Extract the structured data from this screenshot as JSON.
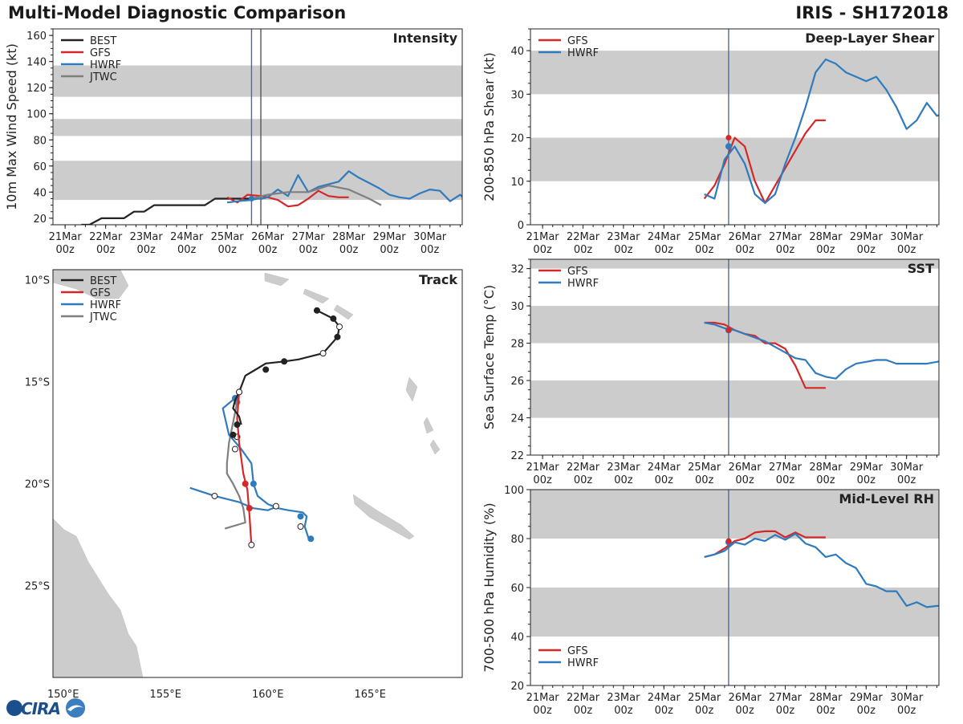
{
  "header": {
    "title_left": "Multi-Model Diagnostic Comparison",
    "title_right": "IRIS - SH172018"
  },
  "logo": {
    "text": "CIRA"
  },
  "colors": {
    "BEST": "#222222",
    "GFS": "#d62728",
    "HWRF": "#2f7bbd",
    "JTWC": "#7f7f7f",
    "band": "#cccccc",
    "land": "#cccccc",
    "init_line": "#4a6e9c"
  },
  "time_axis": {
    "ticks": [
      [
        "21Mar",
        "00z"
      ],
      [
        "22Mar",
        "00z"
      ],
      [
        "23Mar",
        "00z"
      ],
      [
        "24Mar",
        "00z"
      ],
      [
        "25Mar",
        "00z"
      ],
      [
        "26Mar",
        "00z"
      ],
      [
        "27Mar",
        "00z"
      ],
      [
        "28Mar",
        "00z"
      ],
      [
        "29Mar",
        "00z"
      ],
      [
        "30Mar",
        "00z"
      ]
    ],
    "tick_days": [
      0,
      1,
      2,
      3,
      4,
      5,
      6,
      7,
      8,
      9
    ],
    "range_days": [
      -0.3,
      9.8
    ],
    "init_day": 4.6,
    "init_day_b": 4.83
  },
  "chart_data": [
    {
      "id": "intensity",
      "type": "line",
      "title": "Intensity",
      "ylabel": "10m Max Wind Speed (kt)",
      "ylim": [
        15,
        165
      ],
      "yticks": [
        20,
        40,
        60,
        80,
        100,
        120,
        140,
        160
      ],
      "bands": [
        [
          34,
          64
        ],
        [
          83,
          96
        ],
        [
          113,
          137
        ]
      ],
      "legend": [
        "BEST",
        "GFS",
        "HWRF",
        "JTWC"
      ],
      "series": [
        {
          "name": "BEST",
          "x": [
            0.4,
            0.6,
            0.9,
            1.2,
            1.45,
            1.7,
            1.95,
            2.2,
            2.45,
            2.7,
            2.95,
            3.2,
            3.45,
            3.7,
            3.95,
            4.2,
            4.45,
            4.6
          ],
          "y": [
            15,
            15,
            20,
            20,
            20,
            25,
            25,
            30,
            30,
            30,
            30,
            30,
            30,
            35,
            35,
            35,
            35,
            35
          ]
        },
        {
          "name": "GFS",
          "x": [
            4.0,
            4.25,
            4.5,
            4.83,
            5.0,
            5.25,
            5.5,
            5.75,
            6.0,
            6.25,
            6.5,
            6.75,
            7.0
          ],
          "y": [
            36,
            32,
            38,
            37,
            36,
            34,
            29,
            30,
            35,
            41,
            37,
            36,
            36
          ]
        },
        {
          "name": "HWRF",
          "x": [
            4.0,
            4.25,
            4.6,
            4.75,
            4.85,
            5.0,
            5.25,
            5.5,
            5.75,
            6.0,
            6.25,
            6.5,
            6.75,
            7.0,
            7.25,
            7.5,
            7.75,
            8.0,
            8.25,
            8.5,
            8.75,
            9.0,
            9.25,
            9.5,
            9.75,
            10.0
          ],
          "y": [
            32,
            33,
            34,
            35,
            35,
            36,
            42,
            37,
            53,
            40,
            44,
            46,
            48,
            56,
            51,
            47,
            43,
            38,
            36,
            35,
            39,
            42,
            41,
            33,
            38,
            30
          ]
        },
        {
          "name": "JTWC",
          "x": [
            4.6,
            5.0,
            5.5,
            6.0,
            6.5,
            7.0,
            7.5,
            7.8
          ],
          "y": [
            35,
            38,
            40,
            40,
            45,
            42,
            35,
            30
          ]
        }
      ]
    },
    {
      "id": "shear",
      "type": "line",
      "title": "Deep-Layer Shear",
      "ylabel": "200-850 hPa Shear (kt)",
      "ylim": [
        0,
        45
      ],
      "yticks": [
        0,
        10,
        20,
        30,
        40
      ],
      "bands": [
        [
          10,
          20
        ],
        [
          30,
          40
        ]
      ],
      "legend": [
        "GFS",
        "HWRF"
      ],
      "series": [
        {
          "name": "GFS",
          "x": [
            4.0,
            4.25,
            4.5,
            4.75,
            5.0,
            5.25,
            5.5,
            5.75,
            6.0,
            6.25,
            6.5,
            6.75,
            7.0
          ],
          "y": [
            6,
            9,
            14,
            20,
            18,
            10,
            5,
            9,
            13,
            17,
            21,
            24,
            24
          ]
        },
        {
          "name": "HWRF",
          "x": [
            4.0,
            4.25,
            4.5,
            4.75,
            5.0,
            5.25,
            5.5,
            5.75,
            6.0,
            6.25,
            6.5,
            6.75,
            7.0,
            7.25,
            7.5,
            7.75,
            8.0,
            8.25,
            8.5,
            8.75,
            9.0,
            9.25,
            9.5,
            9.75,
            10.0
          ],
          "y": [
            7,
            6,
            15,
            18,
            14,
            7,
            5,
            7,
            14,
            20,
            27,
            35,
            38,
            37,
            35,
            34,
            33,
            34,
            31,
            27,
            22,
            24,
            28,
            25,
            26
          ]
        }
      ]
    },
    {
      "id": "sst",
      "type": "line",
      "title": "SST",
      "ylabel": "Sea Surface Temp (°C)",
      "ylim": [
        22,
        32.5
      ],
      "yticks": [
        22,
        24,
        26,
        28,
        30,
        32
      ],
      "bands": [
        [
          24,
          26
        ],
        [
          28,
          30
        ],
        [
          32,
          32.5
        ]
      ],
      "legend": [
        "GFS",
        "HWRF"
      ],
      "series": [
        {
          "name": "GFS",
          "x": [
            4.0,
            4.25,
            4.5,
            4.75,
            5.0,
            5.25,
            5.5,
            5.75,
            6.0,
            6.25,
            6.5,
            6.75,
            7.0
          ],
          "y": [
            29.1,
            29.1,
            29.0,
            28.7,
            28.5,
            28.4,
            28.0,
            28.0,
            27.7,
            26.8,
            25.6,
            25.6,
            25.6
          ]
        },
        {
          "name": "HWRF",
          "x": [
            4.0,
            4.25,
            4.5,
            4.75,
            5.0,
            5.25,
            5.5,
            5.75,
            6.0,
            6.25,
            6.5,
            6.75,
            7.0,
            7.25,
            7.5,
            7.75,
            8.0,
            8.25,
            8.5,
            8.75,
            9.0,
            9.25,
            9.5,
            9.75,
            10.0
          ],
          "y": [
            29.1,
            29.0,
            28.8,
            28.7,
            28.5,
            28.3,
            28.1,
            27.8,
            27.5,
            27.2,
            27.1,
            26.4,
            26.2,
            26.1,
            26.6,
            26.9,
            27.0,
            27.1,
            27.1,
            26.9,
            26.9,
            26.9,
            26.9,
            27.0,
            27.1
          ]
        }
      ]
    },
    {
      "id": "rh",
      "type": "line",
      "title": "Mid-Level RH",
      "ylabel": "700-500 hPa Humidity (%)",
      "ylim": [
        20,
        100
      ],
      "yticks": [
        20,
        40,
        60,
        80,
        100
      ],
      "bands": [
        [
          40,
          60
        ],
        [
          80,
          100
        ]
      ],
      "legend": [
        "GFS",
        "HWRF"
      ],
      "series": [
        {
          "name": "GFS",
          "x": [
            4.0,
            4.25,
            4.5,
            4.75,
            5.0,
            5.25,
            5.5,
            5.75,
            6.0,
            6.25,
            6.5,
            6.75,
            7.0
          ],
          "y": [
            72.5,
            73.5,
            76,
            79,
            80,
            82.5,
            83,
            83,
            80.5,
            82.5,
            80.5,
            80.5,
            80.5
          ]
        },
        {
          "name": "HWRF",
          "x": [
            4.0,
            4.25,
            4.5,
            4.75,
            5.0,
            5.25,
            5.5,
            5.75,
            6.0,
            6.25,
            6.5,
            6.75,
            7.0,
            7.25,
            7.5,
            7.75,
            8.0,
            8.25,
            8.5,
            8.75,
            9.0,
            9.25,
            9.5,
            9.75,
            10.0
          ],
          "y": [
            72.5,
            73.5,
            75,
            78.5,
            77.5,
            80,
            79,
            81.5,
            79.5,
            82,
            78,
            76.5,
            72.5,
            73.5,
            70,
            68,
            61.5,
            60.5,
            58.5,
            58.5,
            52.5,
            54,
            52,
            52.5,
            52.5
          ]
        }
      ]
    },
    {
      "id": "track",
      "type": "scatter",
      "title": "Track",
      "xlim": [
        149.5,
        169.5
      ],
      "ylim": [
        -29.5,
        -9.5
      ],
      "xticks": [
        150,
        155,
        160,
        165
      ],
      "xtick_labels": [
        "150°E",
        "155°E",
        "160°E",
        "165°E"
      ],
      "yticks": [
        -10,
        -15,
        -20,
        -25
      ],
      "ytick_labels": [
        "10°S",
        "15°S",
        "20°S",
        "25°S"
      ],
      "legend": [
        "BEST",
        "GFS",
        "HWRF",
        "JTWC"
      ],
      "series": [
        {
          "name": "BEST",
          "lon": [
            162.4,
            163.2,
            163.5,
            163.4,
            162.7,
            161.5,
            160.8,
            159.9,
            159.4,
            158.9,
            158.6,
            158.4,
            158.3,
            158.6,
            158.7
          ],
          "lat": [
            -11.5,
            -11.9,
            -12.3,
            -12.8,
            -13.6,
            -13.9,
            -14.0,
            -14.1,
            -14.4,
            -14.7,
            -15.5,
            -15.9,
            -16.3,
            -16.7,
            -17.1
          ],
          "markers": [
            [
              162.4,
              -11.5,
              "f"
            ],
            [
              163.2,
              -11.9,
              "f"
            ],
            [
              163.5,
              -12.3,
              "o"
            ],
            [
              163.4,
              -12.8,
              "f"
            ],
            [
              162.7,
              -13.6,
              "o"
            ],
            [
              160.8,
              -14.0,
              "f"
            ],
            [
              159.9,
              -14.4,
              "f"
            ],
            [
              158.6,
              -15.5,
              "o"
            ],
            [
              158.3,
              -17.6,
              "f"
            ],
            [
              158.5,
              -17.1,
              "f"
            ]
          ]
        },
        {
          "name": "GFS",
          "lon": [
            158.6,
            158.5,
            158.6,
            158.8,
            159.0,
            159.1,
            159.2
          ],
          "lat": [
            -15.5,
            -16.8,
            -18.0,
            -19.5,
            -20.3,
            -21.5,
            -23.0
          ],
          "markers": [
            [
              158.6,
              -15.5,
              "f"
            ],
            [
              158.9,
              -20.0,
              "f"
            ],
            [
              159.1,
              -21.2,
              "f"
            ],
            [
              159.2,
              -23.0,
              "o"
            ]
          ]
        },
        {
          "name": "HWRF",
          "lon": [
            158.4,
            157.8,
            158.1,
            158.7,
            159.2,
            159.3,
            159.5,
            160.0,
            160.5,
            161.0,
            161.7,
            161.9,
            161.8,
            162.0
          ],
          "lat": [
            -15.8,
            -16.3,
            -17.6,
            -18.3,
            -19.0,
            -20.0,
            -20.6,
            -21.0,
            -21.2,
            -21.3,
            -21.4,
            -21.6,
            -22.1,
            -22.7
          ],
          "markers": [
            [
              158.4,
              -15.8,
              "f"
            ],
            [
              158.5,
              -17.7,
              "o"
            ],
            [
              158.4,
              -18.3,
              "o"
            ],
            [
              159.3,
              -20.0,
              "f"
            ],
            [
              160.4,
              -21.1,
              "o"
            ],
            [
              161.6,
              -21.6,
              "f"
            ],
            [
              161.6,
              -22.1,
              "o"
            ],
            [
              162.1,
              -22.7,
              "f"
            ]
          ]
        },
        {
          "name": "HWRF_b",
          "lon": [
            156.2,
            157.4,
            158.6,
            159.3,
            160.0,
            160.5
          ],
          "lat": [
            -20.2,
            -20.6,
            -20.9,
            -21.2,
            -21.3,
            -21.1
          ],
          "markers": [
            [
              157.4,
              -20.6,
              "o"
            ]
          ]
        },
        {
          "name": "JTWC",
          "lon": [
            158.5,
            158.3,
            158.1,
            158.0,
            158.0,
            158.3,
            158.6,
            158.8,
            158.9,
            157.9
          ],
          "lat": [
            -16.0,
            -17.0,
            -18.0,
            -19.0,
            -19.5,
            -20.0,
            -20.6,
            -21.2,
            -21.9,
            -22.2
          ],
          "markers": [
            [
              158.5,
              -16.0,
              "f"
            ]
          ]
        }
      ]
    }
  ]
}
